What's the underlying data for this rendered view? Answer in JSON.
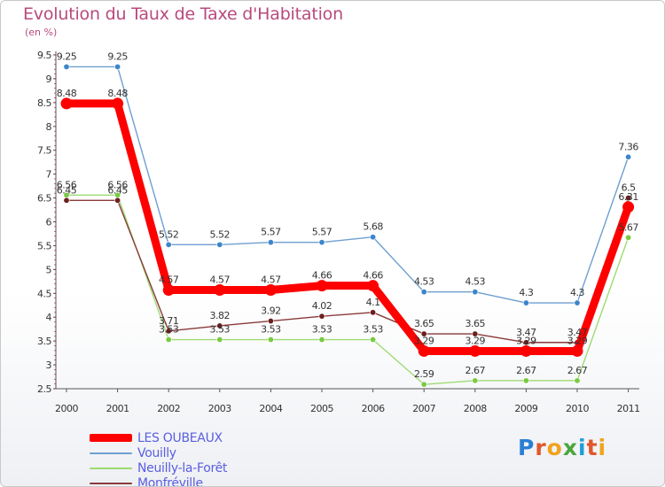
{
  "header": {
    "title": "Evolution du Taux de Taxe d'Habitation",
    "subtitle": "(en %)"
  },
  "logo": {
    "text": "Proxiti",
    "letter_colors": [
      "#2a7fd4",
      "#e0572b",
      "#f2a21c",
      "#4aa63c",
      "#1e9fd8",
      "#e0572b",
      "#f2a21c"
    ]
  },
  "chart_data": {
    "type": "line",
    "title": "Evolution du Taux de Taxe d'Habitation",
    "subtitle": "(en %)",
    "x": [
      "2000",
      "2001",
      "2002",
      "2003",
      "2004",
      "2005",
      "2006",
      "2007",
      "2008",
      "2009",
      "2010",
      "2011"
    ],
    "ylim": [
      2.5,
      9.5
    ],
    "yticks": [
      "2.5",
      "3",
      "3.5",
      "4",
      "4.5",
      "5",
      "5.5",
      "6",
      "6.5",
      "7",
      "7.5",
      "8",
      "8.5",
      "9",
      "9.5"
    ],
    "grid": false,
    "legend_position": "bottom-left",
    "series": [
      {
        "name": "LES OUBEAUX",
        "color": "#ff0000",
        "emphasis": true,
        "values": [
          8.48,
          8.48,
          4.57,
          4.57,
          4.57,
          4.66,
          4.66,
          3.29,
          3.29,
          3.29,
          3.29,
          6.31
        ],
        "labels": [
          "8.48",
          "8.48",
          "4.57",
          "4.57",
          "4.57",
          "4.66",
          "4.66",
          "3.29",
          "3.29",
          "3.29",
          "3.29",
          "6.31"
        ]
      },
      {
        "name": "Vouilly",
        "color": "#6e9fd0",
        "marker": "#3b86cb",
        "values": [
          9.25,
          9.25,
          5.52,
          5.52,
          5.57,
          5.57,
          5.68,
          4.53,
          4.53,
          4.3,
          4.3,
          7.36
        ],
        "labels": [
          "9.25",
          "9.25",
          "5.52",
          "5.52",
          "5.57",
          "5.57",
          "5.68",
          "4.53",
          "4.53",
          "4.3",
          "4.3",
          "7.36"
        ]
      },
      {
        "name": "Neuilly-la-Forêt",
        "color": "#9ddb73",
        "marker": "#7ac943",
        "values": [
          6.56,
          6.56,
          3.53,
          3.53,
          3.53,
          3.53,
          3.53,
          2.59,
          2.67,
          2.67,
          2.67,
          5.67
        ],
        "labels": [
          "6.56",
          "6.56",
          "3.53",
          "3.53",
          "3.53",
          "3.53",
          "3.53",
          "2.59",
          "2.67",
          "2.67",
          "2.67",
          "5.67"
        ]
      },
      {
        "name": "Monfréville",
        "color": "#8b3a3a",
        "marker": "#6b1f1f",
        "values": [
          6.45,
          6.45,
          3.71,
          3.82,
          3.92,
          4.02,
          4.1,
          3.65,
          3.65,
          3.47,
          3.47,
          6.5
        ],
        "labels": [
          "6.45",
          "6.45",
          "3.71",
          "3.82",
          "3.92",
          "4.02",
          "4.1",
          "3.65",
          "3.65",
          "3.47",
          "3.47",
          "6.5"
        ]
      }
    ]
  }
}
